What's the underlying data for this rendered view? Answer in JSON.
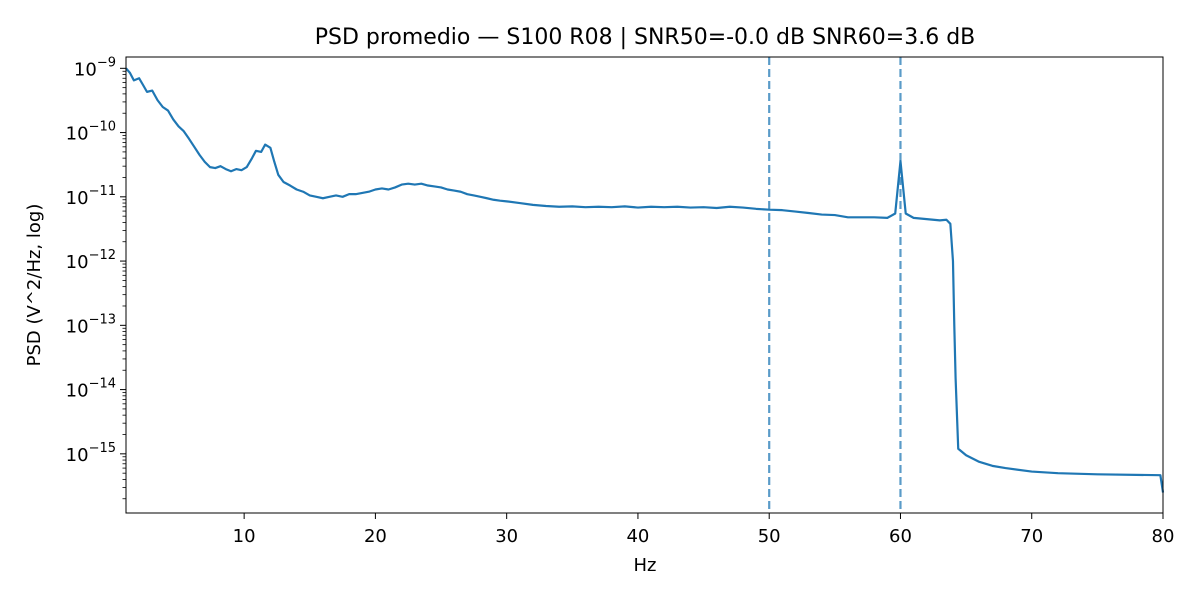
{
  "chart_data": {
    "type": "line",
    "title": "PSD promedio — S100 R08 | SNR50=-0.0 dB  SNR60=3.6 dB",
    "xlabel": "Hz",
    "ylabel": "PSD (V^2/Hz, log)",
    "xlim": [
      1,
      80
    ],
    "ylim": [
      1.2e-16,
      1.5e-09
    ],
    "yscale": "log",
    "grid": false,
    "x_ticks": [
      10,
      20,
      30,
      40,
      50,
      60,
      70,
      80
    ],
    "x_tick_labels": [
      "10",
      "20",
      "30",
      "40",
      "50",
      "60",
      "70",
      "80"
    ],
    "y_ticks": [
      1e-15,
      1e-14,
      1e-13,
      1e-12,
      1e-11,
      1e-10,
      1e-09
    ],
    "y_tick_labels": [
      {
        "base": "10",
        "exp": "−15"
      },
      {
        "base": "10",
        "exp": "−14"
      },
      {
        "base": "10",
        "exp": "−13"
      },
      {
        "base": "10",
        "exp": "−12"
      },
      {
        "base": "10",
        "exp": "−11"
      },
      {
        "base": "10",
        "exp": "−10"
      },
      {
        "base": "10",
        "exp": "−9"
      }
    ],
    "vlines": [
      {
        "x": 50,
        "style": "dashed",
        "color": "#5a9bc8"
      },
      {
        "x": 60,
        "style": "dashed",
        "color": "#5a9bc8"
      }
    ],
    "series": [
      {
        "color": "#1f77b4",
        "points": [
          [
            1.0,
            1e-09
          ],
          [
            1.3,
            8.5e-10
          ],
          [
            1.6,
            6.5e-10
          ],
          [
            2.0,
            7e-10
          ],
          [
            2.3,
            5.5e-10
          ],
          [
            2.6,
            4.3e-10
          ],
          [
            3.0,
            4.5e-10
          ],
          [
            3.4,
            3.2e-10
          ],
          [
            3.8,
            2.5e-10
          ],
          [
            4.2,
            2.2e-10
          ],
          [
            4.6,
            1.6e-10
          ],
          [
            5.0,
            1.25e-10
          ],
          [
            5.4,
            1.05e-10
          ],
          [
            5.8,
            8e-11
          ],
          [
            6.2,
            6e-11
          ],
          [
            6.6,
            4.5e-11
          ],
          [
            7.0,
            3.5e-11
          ],
          [
            7.4,
            2.9e-11
          ],
          [
            7.8,
            2.8e-11
          ],
          [
            8.2,
            3e-11
          ],
          [
            8.6,
            2.7e-11
          ],
          [
            9.0,
            2.5e-11
          ],
          [
            9.4,
            2.7e-11
          ],
          [
            9.8,
            2.6e-11
          ],
          [
            10.2,
            2.9e-11
          ],
          [
            10.6,
            4e-11
          ],
          [
            10.9,
            5.2e-11
          ],
          [
            11.3,
            5e-11
          ],
          [
            11.6,
            6.5e-11
          ],
          [
            12.0,
            5.8e-11
          ],
          [
            12.3,
            3.5e-11
          ],
          [
            12.6,
            2.2e-11
          ],
          [
            13.0,
            1.7e-11
          ],
          [
            13.5,
            1.5e-11
          ],
          [
            14.0,
            1.3e-11
          ],
          [
            14.5,
            1.2e-11
          ],
          [
            15.0,
            1.05e-11
          ],
          [
            15.5,
            1e-11
          ],
          [
            16.0,
            9.5e-12
          ],
          [
            16.5,
            1e-11
          ],
          [
            17.0,
            1.05e-11
          ],
          [
            17.5,
            1e-11
          ],
          [
            18.0,
            1.1e-11
          ],
          [
            18.5,
            1.1e-11
          ],
          [
            19.0,
            1.15e-11
          ],
          [
            19.5,
            1.2e-11
          ],
          [
            20.0,
            1.3e-11
          ],
          [
            20.5,
            1.35e-11
          ],
          [
            21.0,
            1.3e-11
          ],
          [
            21.5,
            1.4e-11
          ],
          [
            22.0,
            1.55e-11
          ],
          [
            22.5,
            1.6e-11
          ],
          [
            23.0,
            1.55e-11
          ],
          [
            23.5,
            1.6e-11
          ],
          [
            24.0,
            1.5e-11
          ],
          [
            24.5,
            1.45e-11
          ],
          [
            25.0,
            1.4e-11
          ],
          [
            25.5,
            1.3e-11
          ],
          [
            26.0,
            1.25e-11
          ],
          [
            26.5,
            1.2e-11
          ],
          [
            27.0,
            1.1e-11
          ],
          [
            27.5,
            1.05e-11
          ],
          [
            28.0,
            1e-11
          ],
          [
            28.5,
            9.5e-12
          ],
          [
            29.0,
            9e-12
          ],
          [
            29.5,
            8.7e-12
          ],
          [
            30.0,
            8.5e-12
          ],
          [
            31.0,
            8e-12
          ],
          [
            32.0,
            7.5e-12
          ],
          [
            33.0,
            7.2e-12
          ],
          [
            34.0,
            7e-12
          ],
          [
            35.0,
            7.1e-12
          ],
          [
            36.0,
            6.9e-12
          ],
          [
            37.0,
            7e-12
          ],
          [
            38.0,
            6.9e-12
          ],
          [
            39.0,
            7.1e-12
          ],
          [
            40.0,
            6.8e-12
          ],
          [
            41.0,
            7e-12
          ],
          [
            42.0,
            6.9e-12
          ],
          [
            43.0,
            7e-12
          ],
          [
            44.0,
            6.8e-12
          ],
          [
            45.0,
            6.9e-12
          ],
          [
            46.0,
            6.7e-12
          ],
          [
            47.0,
            7e-12
          ],
          [
            48.0,
            6.8e-12
          ],
          [
            49.0,
            6.5e-12
          ],
          [
            50.0,
            6.3e-12
          ],
          [
            51.0,
            6.2e-12
          ],
          [
            52.0,
            5.9e-12
          ],
          [
            53.0,
            5.6e-12
          ],
          [
            54.0,
            5.3e-12
          ],
          [
            55.0,
            5.2e-12
          ],
          [
            56.0,
            4.8e-12
          ],
          [
            57.0,
            4.8e-12
          ],
          [
            58.0,
            4.8e-12
          ],
          [
            59.0,
            4.7e-12
          ],
          [
            59.6,
            5.5e-12
          ],
          [
            60.0,
            3.6e-11
          ],
          [
            60.4,
            5.5e-12
          ],
          [
            61.0,
            4.7e-12
          ],
          [
            62.0,
            4.5e-12
          ],
          [
            63.0,
            4.3e-12
          ],
          [
            63.5,
            4.4e-12
          ],
          [
            63.8,
            3.8e-12
          ],
          [
            64.0,
            1e-12
          ],
          [
            64.1,
            1e-13
          ],
          [
            64.2,
            1.5e-14
          ],
          [
            64.4,
            1.2e-15
          ],
          [
            65.0,
            9.5e-16
          ],
          [
            66.0,
            7.5e-16
          ],
          [
            67.0,
            6.5e-16
          ],
          [
            68.0,
            6e-16
          ],
          [
            70.0,
            5.3e-16
          ],
          [
            72.0,
            5e-16
          ],
          [
            75.0,
            4.8e-16
          ],
          [
            79.8,
            4.65e-16
          ],
          [
            80.0,
            2.5e-16
          ]
        ]
      }
    ]
  }
}
